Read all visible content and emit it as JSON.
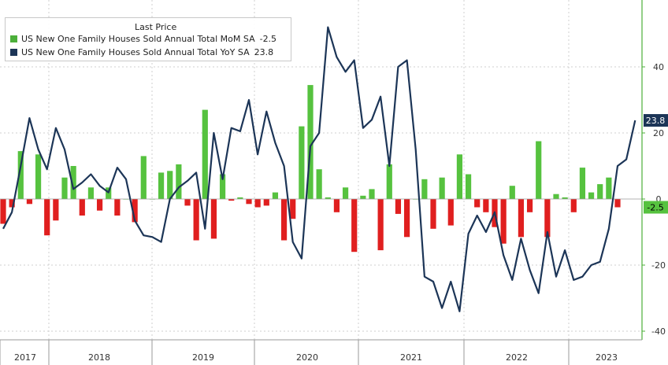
{
  "chart_data": {
    "type": "bar+line",
    "legend": {
      "header": "Last Price",
      "items": [
        {
          "label": "US New One Family Houses Sold Annual Total MoM SA",
          "value_label": "-2.5",
          "color": "#4caf3a"
        },
        {
          "label": "US New One Family Houses Sold Annual Total YoY SA",
          "value_label": "23.8",
          "color": "#1c3557"
        }
      ]
    },
    "y_axis": {
      "position": "right",
      "range": [
        -40,
        60
      ],
      "ticks": [
        "40",
        "20",
        "0",
        "-20",
        "-40"
      ]
    },
    "x_axis": {
      "ticks": [
        "2017",
        "2018",
        "2019",
        "2020",
        "2021",
        "2022",
        "2023"
      ]
    },
    "last_value_labels": {
      "yoy": "23.8",
      "mom": "-2.5"
    },
    "mom_values": [
      -7.5,
      -2.5,
      14.5,
      -1.5,
      13.5,
      -11,
      -6.5,
      6.5,
      10,
      -5,
      3.5,
      -3.5,
      3.5,
      -5,
      0,
      -7,
      13,
      0,
      8,
      8.5,
      10.5,
      -2,
      -12.5,
      27,
      -12,
      7.5,
      -0.5,
      0.5,
      -1.5,
      -2.5,
      -2,
      2,
      -12.5,
      -6,
      22,
      34.5,
      9,
      0.5,
      -4,
      3.5,
      -16,
      1,
      3,
      -15.5,
      10.5,
      -4.5,
      -11.5,
      0,
      6,
      -9,
      6.5,
      -8,
      13.5,
      7.5,
      -2.5,
      -4,
      -8.5,
      -13.5,
      4,
      -11.5,
      -4,
      17.5,
      -11.5,
      1.5,
      0.5,
      -4,
      9.5,
      2,
      4.5,
      6.5,
      -2.5
    ],
    "yoy_values": [
      -9,
      -4,
      10,
      24.5,
      15,
      9,
      21.5,
      15,
      3,
      5,
      7.5,
      4,
      2,
      9.5,
      6,
      -6.5,
      -11,
      -11.5,
      -13,
      0,
      3.5,
      5.5,
      8,
      -9,
      20,
      6,
      21.5,
      20.5,
      30,
      13.5,
      26.5,
      17,
      10,
      -13,
      -18,
      16,
      20,
      52,
      43,
      38.5,
      42,
      21.5,
      24,
      31,
      10,
      40,
      42,
      15,
      -23.5,
      -25,
      -33,
      -25,
      -34,
      -10.5,
      -5,
      -10,
      -4,
      -17,
      -24.5,
      -12,
      -21.5,
      -28.5,
      -10,
      -23.5,
      -15.5,
      -24.5,
      -23.5,
      -20,
      -19,
      -9,
      10,
      12,
      23.8
    ]
  }
}
